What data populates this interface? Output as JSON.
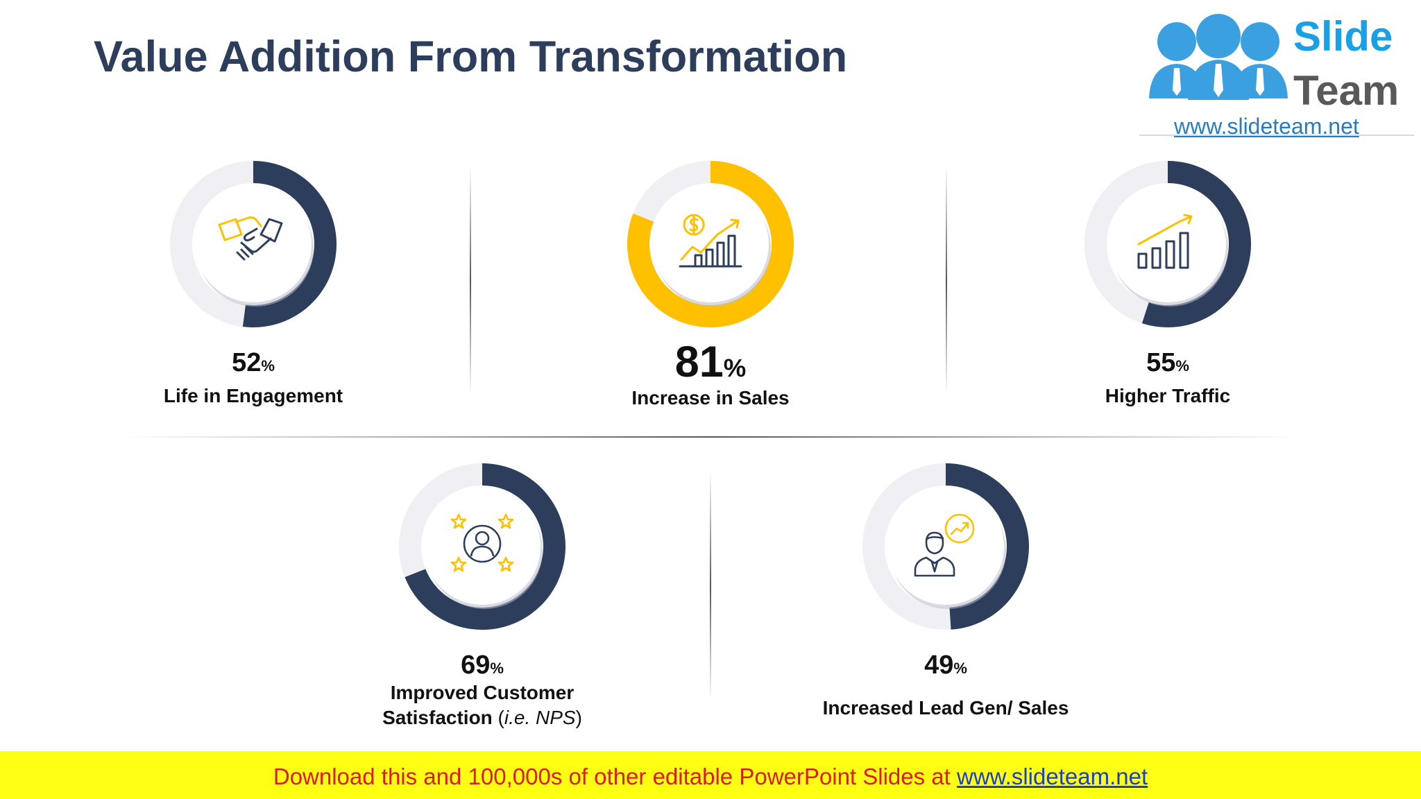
{
  "slide": {
    "title": "Value Addition From Transformation"
  },
  "logo": {
    "word1": "Slide",
    "word2": "Team",
    "url": "www.slideteam.net"
  },
  "colors": {
    "navy": "#2d3e5c",
    "gold": "#ffc000",
    "track": "#f0eff4",
    "banner_bg": "#ffff14",
    "banner_text": "#e0191e",
    "banner_link": "#1a3fc4"
  },
  "metrics": [
    {
      "value": 52,
      "value_text": "52",
      "percent_sign": "%",
      "label": "Life in Engagement",
      "icon": "handshake-icon",
      "color": "navy"
    },
    {
      "value": 81,
      "value_text": "81",
      "percent_sign": "%",
      "label": "Increase in Sales",
      "icon": "sales-growth-icon",
      "color": "gold"
    },
    {
      "value": 55,
      "value_text": "55",
      "percent_sign": "%",
      "label": "Higher Traffic",
      "icon": "bar-chart-up-icon",
      "color": "navy"
    },
    {
      "value": 69,
      "value_text": "69",
      "percent_sign": "%",
      "label_line1": "Improved Customer",
      "label_line2_bold": "Satisfaction",
      "label_line2_paren_open": " (",
      "label_line2_italic": "i.e. NPS",
      "label_line2_paren_close": ")",
      "icon": "customer-rating-icon",
      "color": "navy"
    },
    {
      "value": 49,
      "value_text": "49",
      "percent_sign": "%",
      "label": "Increased Lead Gen/ Sales",
      "icon": "lead-gen-person-icon",
      "color": "navy"
    }
  ],
  "banner": {
    "text": "Download this and 100,000s of other editable PowerPoint Slides at ",
    "link": "www.slideteam.net"
  }
}
